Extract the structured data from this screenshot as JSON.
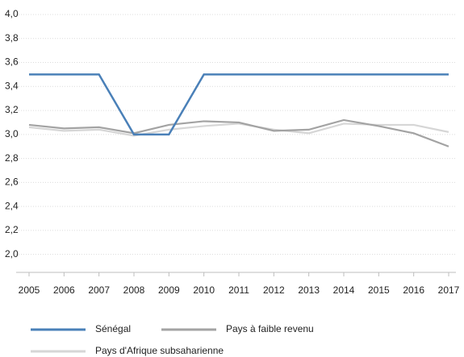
{
  "chart_data": {
    "type": "line",
    "categories": [
      "2005",
      "2006",
      "2007",
      "2008",
      "2009",
      "2010",
      "2011",
      "2012",
      "2013",
      "2014",
      "2015",
      "2016",
      "2017"
    ],
    "series": [
      {
        "name": "Sénégal",
        "color": "#4a80b8",
        "values": [
          3.5,
          3.5,
          3.5,
          3.0,
          3.0,
          3.5,
          3.5,
          3.5,
          3.5,
          3.5,
          3.5,
          3.5,
          3.5
        ]
      },
      {
        "name": "Pays à faible revenu",
        "color": "#a3a3a3",
        "values": [
          3.08,
          3.05,
          3.06,
          3.01,
          3.08,
          3.11,
          3.1,
          3.03,
          3.04,
          3.12,
          3.07,
          3.01,
          2.9
        ]
      },
      {
        "name": "Pays d'Afrique subsaharienne",
        "color": "#d6d6d6",
        "values": [
          3.06,
          3.03,
          3.04,
          2.99,
          3.04,
          3.07,
          3.09,
          3.04,
          3.01,
          3.09,
          3.08,
          3.08,
          3.02
        ]
      }
    ],
    "ylim": [
      1.85,
      4.0
    ],
    "yticks": [
      {
        "value": 2.0,
        "label": "2,0"
      },
      {
        "value": 2.2,
        "label": "2,2"
      },
      {
        "value": 2.4,
        "label": "2,4"
      },
      {
        "value": 2.6,
        "label": "2,6"
      },
      {
        "value": 2.8,
        "label": "2,8"
      },
      {
        "value": 3.0,
        "label": "3,0"
      },
      {
        "value": 3.2,
        "label": "3,2"
      },
      {
        "value": 3.4,
        "label": "3,4"
      },
      {
        "value": 3.6,
        "label": "3,6"
      },
      {
        "value": 3.8,
        "label": "3,8"
      },
      {
        "value": 4.0,
        "label": "4,0"
      }
    ],
    "grid": true,
    "legend": "bottom"
  }
}
